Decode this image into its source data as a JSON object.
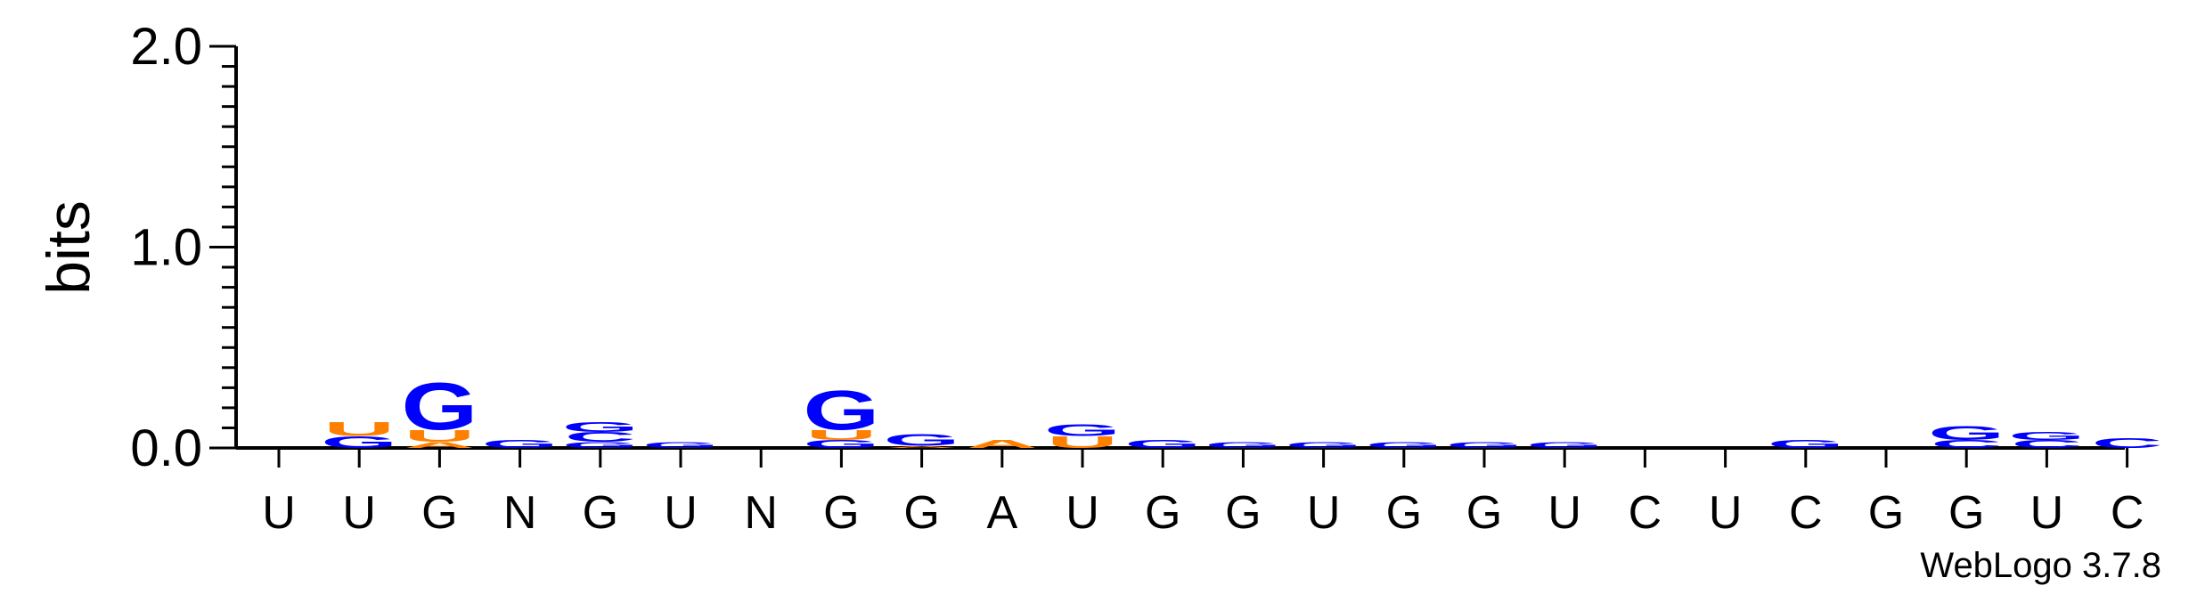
{
  "chart_data": {
    "type": "sequence-logo",
    "ylabel": "bits",
    "ylim": [
      0,
      2.0
    ],
    "y_ticks": [
      "0.0",
      "1.0",
      "2.0"
    ],
    "positions": [
      "U",
      "U",
      "G",
      "N",
      "G",
      "U",
      "N",
      "G",
      "G",
      "A",
      "U",
      "G",
      "G",
      "U",
      "G",
      "G",
      "U",
      "C",
      "U",
      "C",
      "G",
      "G",
      "U",
      "C"
    ],
    "stacks": [
      [],
      [
        {
          "letter": "G",
          "bits": 0.06
        },
        {
          "letter": "U",
          "bits": 0.07
        }
      ],
      [
        {
          "letter": "A",
          "bits": 0.03
        },
        {
          "letter": "U",
          "bits": 0.06
        },
        {
          "letter": "G",
          "bits": 0.24
        }
      ],
      [
        {
          "letter": "G",
          "bits": 0.04
        }
      ],
      [
        {
          "letter": "G",
          "bits": 0.03
        },
        {
          "letter": "C",
          "bits": 0.05
        },
        {
          "letter": "G",
          "bits": 0.05
        }
      ],
      [
        {
          "letter": "G",
          "bits": 0.03
        }
      ],
      [],
      [
        {
          "letter": "G",
          "bits": 0.04
        },
        {
          "letter": "U",
          "bits": 0.05
        },
        {
          "letter": "G",
          "bits": 0.2
        }
      ],
      [
        {
          "letter": "A",
          "bits": 0.01
        },
        {
          "letter": "G",
          "bits": 0.06
        }
      ],
      [
        {
          "letter": "A",
          "bits": 0.04
        }
      ],
      [
        {
          "letter": "U",
          "bits": 0.06
        },
        {
          "letter": "G",
          "bits": 0.06
        }
      ],
      [
        {
          "letter": "G",
          "bits": 0.04
        }
      ],
      [
        {
          "letter": "G",
          "bits": 0.03
        }
      ],
      [
        {
          "letter": "G",
          "bits": 0.03
        }
      ],
      [
        {
          "letter": "G",
          "bits": 0.03
        }
      ],
      [
        {
          "letter": "G",
          "bits": 0.03
        }
      ],
      [
        {
          "letter": "G",
          "bits": 0.03
        }
      ],
      [],
      [],
      [
        {
          "letter": "G",
          "bits": 0.04
        }
      ],
      [],
      [
        {
          "letter": "C",
          "bits": 0.04
        },
        {
          "letter": "G",
          "bits": 0.07
        }
      ],
      [
        {
          "letter": "C",
          "bits": 0.04
        },
        {
          "letter": "G",
          "bits": 0.04
        }
      ],
      [
        {
          "letter": "C",
          "bits": 0.05
        }
      ]
    ],
    "colors": {
      "G": "#0000ff",
      "C": "#0000ff",
      "U": "#ff8000",
      "A": "#ff8000",
      "N": "#000000"
    },
    "grid": false,
    "legend": "none"
  },
  "credit": "WebLogo 3.7.8"
}
